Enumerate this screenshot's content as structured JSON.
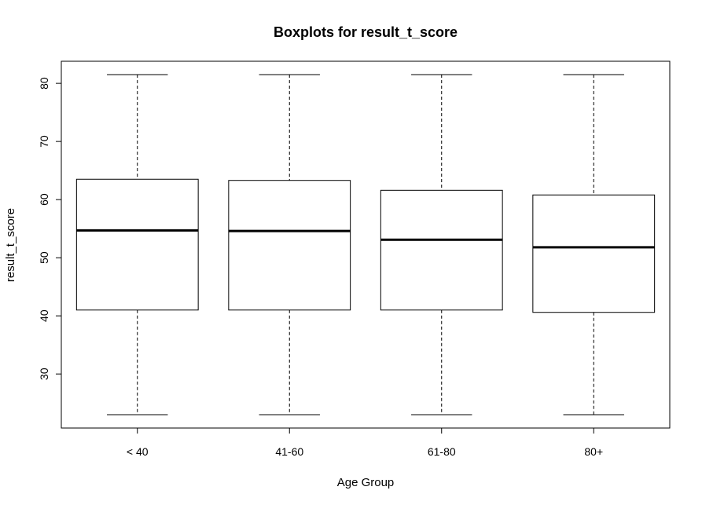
{
  "chart_data": {
    "type": "boxplot",
    "title": "Boxplots for result_t_score",
    "xlabel": "Age Group",
    "ylabel": "result_t_score",
    "categories": [
      "< 40",
      "41-60",
      "61-80",
      "80+"
    ],
    "boxes": [
      {
        "category": "< 40",
        "whisker_low": 23,
        "q1": 41,
        "median": 54.7,
        "q3": 63.5,
        "whisker_high": 81.5
      },
      {
        "category": "41-60",
        "whisker_low": 23,
        "q1": 41,
        "median": 54.6,
        "q3": 63.3,
        "whisker_high": 81.5
      },
      {
        "category": "61-80",
        "whisker_low": 23,
        "q1": 41,
        "median": 53.1,
        "q3": 61.6,
        "whisker_high": 81.5
      },
      {
        "category": "80+",
        "whisker_low": 23,
        "q1": 40.6,
        "median": 51.8,
        "q3": 60.8,
        "whisker_high": 81.5
      }
    ],
    "yticks": [
      30,
      40,
      50,
      60,
      70,
      80
    ],
    "ylim": [
      20.7,
      83.8
    ],
    "grid": false,
    "colors": {
      "box_fill": "#ffffff",
      "stroke": "#000000"
    }
  }
}
